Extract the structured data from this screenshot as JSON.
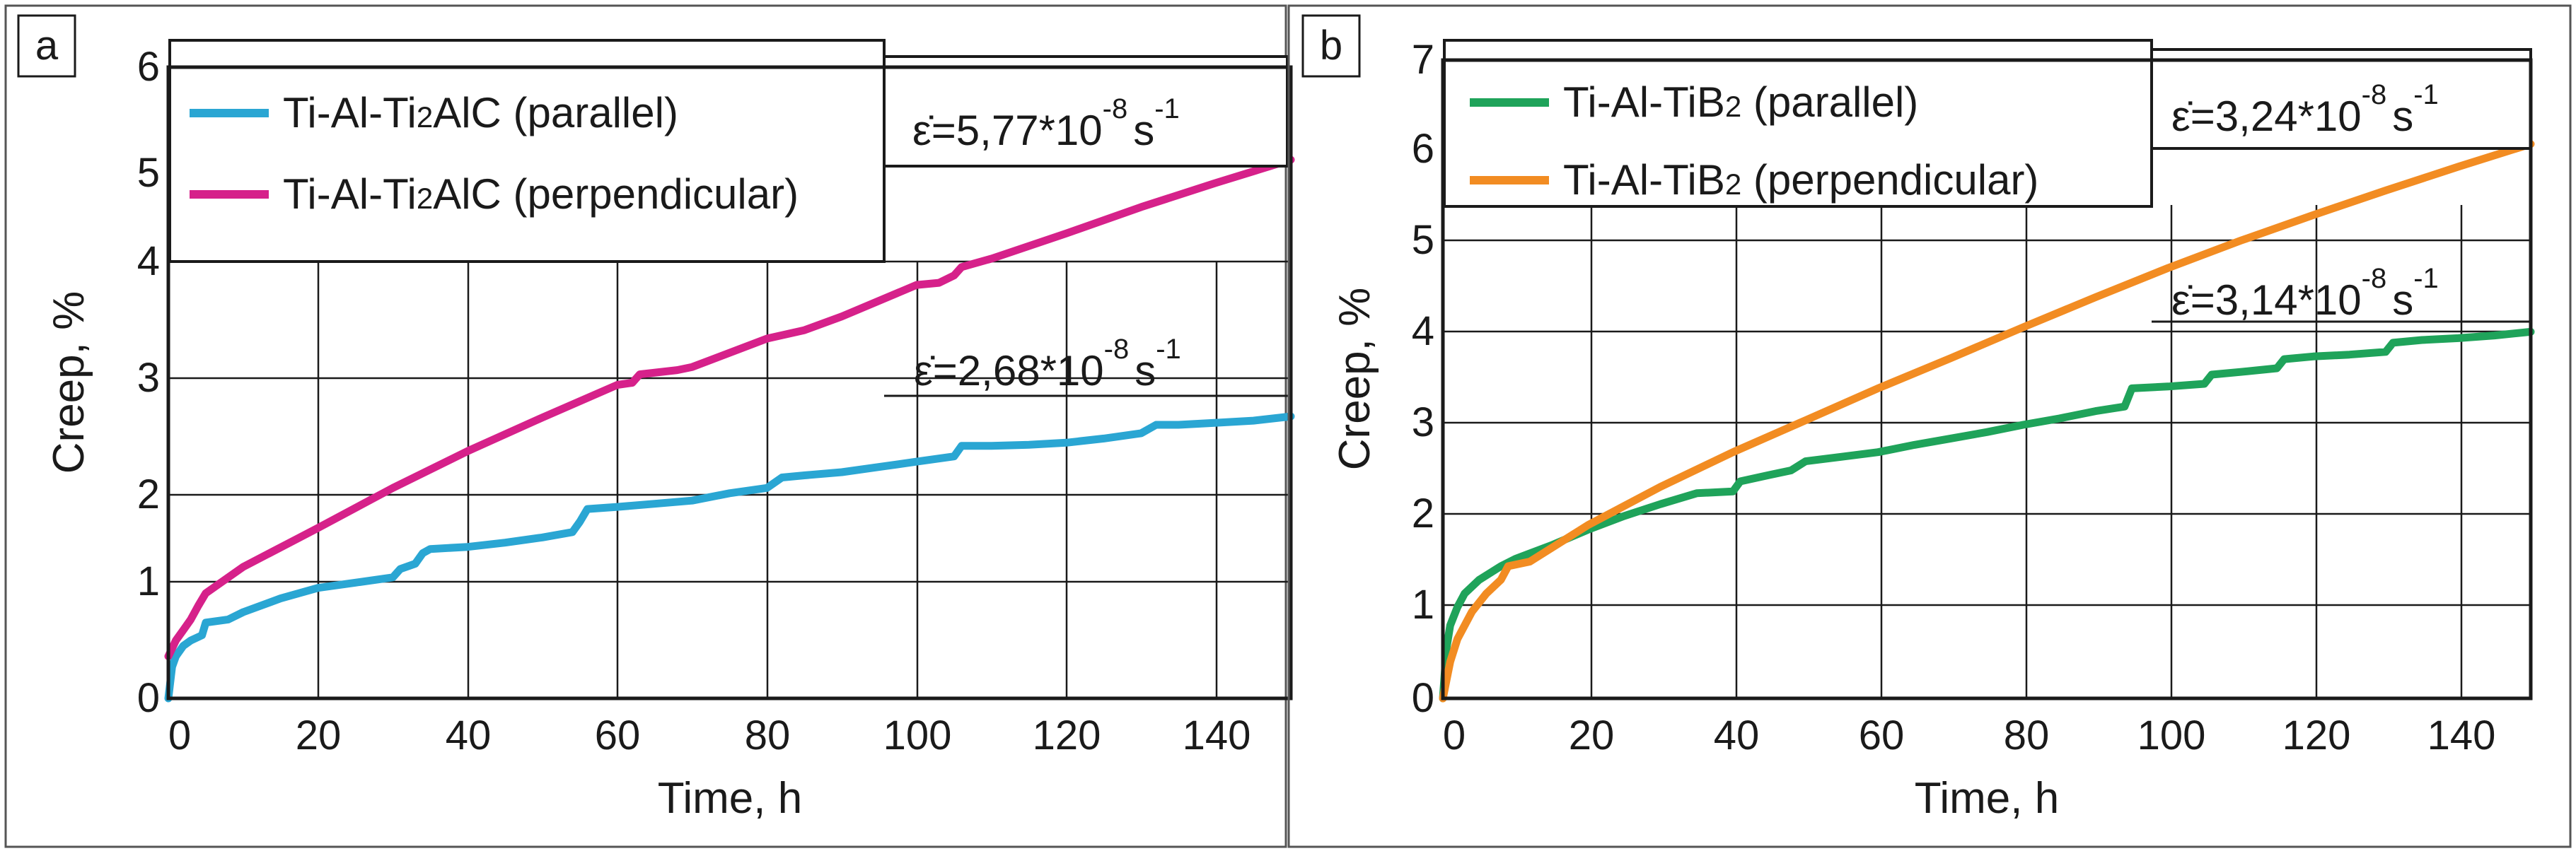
{
  "chart_data": [
    {
      "type": "line",
      "panel_label": "a",
      "xlabel": "Time, h",
      "ylabel": "Creep, %",
      "xlim": [
        0,
        150
      ],
      "ylim": [
        0,
        6
      ],
      "xticks": [
        0,
        20,
        40,
        60,
        80,
        100,
        120,
        140
      ],
      "yticks": [
        0,
        1,
        2,
        3,
        4,
        5,
        6
      ],
      "grid": true,
      "legend_position": "top-left",
      "series": [
        {
          "name": "Ti-Al-Ti2AlC (parallel)",
          "legend_main": "Ti-Al-Ti",
          "legend_sub": "2",
          "legend_rest": "AlC (parallel)",
          "color": "#2aa6d3",
          "x": [
            0,
            0.5,
            1,
            2,
            3,
            4.5,
            5,
            8,
            10,
            15,
            20,
            25,
            30,
            31,
            33,
            34,
            35,
            40,
            45,
            50,
            54,
            55,
            56,
            60,
            65,
            70,
            75,
            80,
            82,
            85,
            90,
            95,
            100,
            105,
            106,
            110,
            115,
            120,
            125,
            130,
            132,
            135,
            140,
            145,
            150
          ],
          "y": [
            0,
            0.3,
            0.4,
            0.5,
            0.55,
            0.6,
            0.72,
            0.75,
            0.82,
            0.95,
            1.05,
            1.1,
            1.15,
            1.23,
            1.28,
            1.38,
            1.42,
            1.44,
            1.48,
            1.53,
            1.58,
            1.68,
            1.8,
            1.82,
            1.85,
            1.88,
            1.95,
            2.0,
            2.1,
            2.12,
            2.15,
            2.2,
            2.25,
            2.3,
            2.4,
            2.4,
            2.41,
            2.43,
            2.47,
            2.52,
            2.6,
            2.6,
            2.62,
            2.64,
            2.68
          ]
        },
        {
          "name": "Ti-Al-Ti2AlC (perpendicular)",
          "legend_main": "Ti-Al-Ti",
          "legend_sub": "2",
          "legend_rest": "AlC (perpendicular)",
          "color": "#d6218a",
          "x": [
            0,
            1,
            2,
            3,
            4,
            5,
            10,
            20,
            30,
            40,
            50,
            60,
            62,
            63,
            68,
            70,
            80,
            85,
            90,
            100,
            103,
            105,
            106,
            110,
            120,
            130,
            140,
            150
          ],
          "y": [
            0.4,
            0.55,
            0.65,
            0.75,
            0.88,
            1.0,
            1.25,
            1.62,
            2.0,
            2.35,
            2.67,
            2.98,
            3.0,
            3.08,
            3.12,
            3.15,
            3.42,
            3.5,
            3.63,
            3.93,
            3.95,
            4.02,
            4.1,
            4.18,
            4.42,
            4.67,
            4.9,
            5.12
          ]
        }
      ],
      "annotations": [
        {
          "base": "ε̇=5,77*10",
          "exp": "-8",
          "unit": "s",
          "unit_exp": "-1"
        },
        {
          "base": "ε̇=2,68*10",
          "exp": "-8",
          "unit": "s",
          "unit_exp": "-1"
        }
      ]
    },
    {
      "type": "line",
      "panel_label": "b",
      "xlabel": "Time, h",
      "ylabel": "Creep, %",
      "xlim": [
        0,
        150
      ],
      "ylim": [
        0,
        7
      ],
      "xticks": [
        0,
        20,
        40,
        60,
        80,
        100,
        120,
        140
      ],
      "yticks": [
        0,
        1,
        2,
        3,
        4,
        5,
        6,
        7
      ],
      "grid": true,
      "legend_position": "top-left",
      "series": [
        {
          "name": "Ti-Al-TiB2 (parallel)",
          "legend_main": "Ti-Al-TiB",
          "legend_sub": "2",
          "legend_rest": " (parallel)",
          "color": "#1fa35a",
          "x": [
            0,
            0.5,
            1,
            2,
            3,
            5,
            8,
            10,
            15,
            20,
            25,
            30,
            35,
            40,
            41,
            45,
            48,
            50,
            55,
            60,
            65,
            70,
            75,
            80,
            85,
            90,
            94,
            95,
            100,
            105,
            106,
            110,
            115,
            116,
            120,
            125,
            130,
            131,
            135,
            140,
            145,
            150
          ],
          "y": [
            0,
            0.55,
            0.8,
            1.0,
            1.15,
            1.3,
            1.45,
            1.53,
            1.68,
            1.85,
            2.0,
            2.13,
            2.25,
            2.27,
            2.38,
            2.45,
            2.5,
            2.6,
            2.65,
            2.7,
            2.78,
            2.85,
            2.92,
            3.0,
            3.07,
            3.15,
            3.2,
            3.4,
            3.42,
            3.45,
            3.55,
            3.58,
            3.62,
            3.72,
            3.75,
            3.77,
            3.8,
            3.9,
            3.93,
            3.95,
            3.98,
            4.02
          ]
        },
        {
          "name": "Ti-Al-TiB2 (perpendicular)",
          "legend_main": "Ti-Al-TiB",
          "legend_sub": "2",
          "legend_rest": " (perpendicular)",
          "color": "#f28c22",
          "x": [
            0,
            0.5,
            1,
            2,
            4,
            6,
            8,
            9,
            12,
            15,
            20,
            30,
            40,
            50,
            60,
            70,
            80,
            90,
            100,
            110,
            120,
            130,
            140,
            150
          ],
          "y": [
            0,
            0.2,
            0.4,
            0.65,
            0.95,
            1.15,
            1.3,
            1.45,
            1.5,
            1.65,
            1.9,
            2.32,
            2.7,
            3.05,
            3.4,
            3.73,
            4.07,
            4.4,
            4.72,
            5.02,
            5.3,
            5.57,
            5.83,
            6.08
          ]
        }
      ],
      "annotations": [
        {
          "base": "ε̇=3,24*10",
          "exp": "-8",
          "unit": "s",
          "unit_exp": "-1"
        },
        {
          "base": "ε̇=3,14*10",
          "exp": "-8",
          "unit": "s",
          "unit_exp": "-1"
        }
      ]
    }
  ]
}
